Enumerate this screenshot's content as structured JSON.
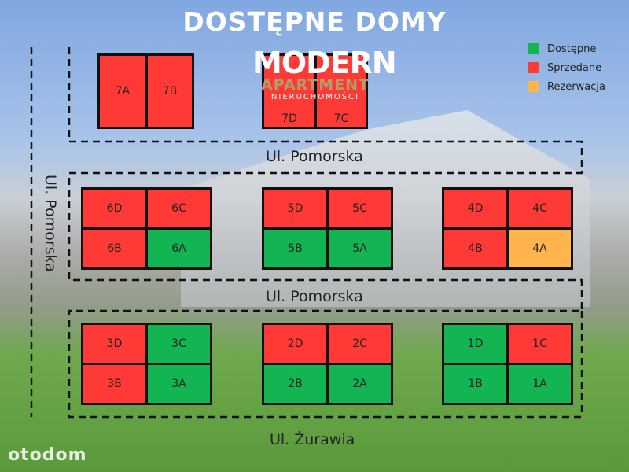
{
  "title": "DOSTĘPNE DOMY",
  "colors": {
    "available": "#12b552",
    "sold": "#ff3a36",
    "reserved": "#ffb54c"
  },
  "legend": [
    {
      "label": "Dostępne",
      "status": "available"
    },
    {
      "label": "Sprzedane",
      "status": "sold"
    },
    {
      "label": "Rezerwacja",
      "status": "reserved"
    }
  ],
  "streets": {
    "top": "Ul. Pomorska",
    "middle": "Ul. Pomorska",
    "left": "Ul. Pomorska",
    "bottom": "Ul. Żurawia"
  },
  "logo": {
    "line1": "MODERN",
    "line2": "APARTMENT",
    "line3": "NIERUCHOMOŚCI"
  },
  "watermark": "otodom",
  "houses": [
    {
      "id": "7A",
      "status": "sold"
    },
    {
      "id": "7B",
      "status": "sold"
    },
    {
      "id": "7C",
      "status": "sold"
    },
    {
      "id": "7D",
      "status": "sold"
    },
    {
      "id": "6D",
      "status": "sold"
    },
    {
      "id": "6C",
      "status": "sold"
    },
    {
      "id": "6B",
      "status": "sold"
    },
    {
      "id": "6A",
      "status": "available"
    },
    {
      "id": "5D",
      "status": "sold"
    },
    {
      "id": "5C",
      "status": "sold"
    },
    {
      "id": "5B",
      "status": "available"
    },
    {
      "id": "5A",
      "status": "available"
    },
    {
      "id": "4D",
      "status": "sold"
    },
    {
      "id": "4C",
      "status": "sold"
    },
    {
      "id": "4B",
      "status": "sold"
    },
    {
      "id": "4A",
      "status": "reserved"
    },
    {
      "id": "3D",
      "status": "sold"
    },
    {
      "id": "3C",
      "status": "available"
    },
    {
      "id": "3B",
      "status": "sold"
    },
    {
      "id": "3A",
      "status": "available"
    },
    {
      "id": "2D",
      "status": "sold"
    },
    {
      "id": "2C",
      "status": "sold"
    },
    {
      "id": "2B",
      "status": "available"
    },
    {
      "id": "2A",
      "status": "available"
    },
    {
      "id": "1D",
      "status": "available"
    },
    {
      "id": "1C",
      "status": "sold"
    },
    {
      "id": "1B",
      "status": "available"
    },
    {
      "id": "1A",
      "status": "available"
    }
  ]
}
